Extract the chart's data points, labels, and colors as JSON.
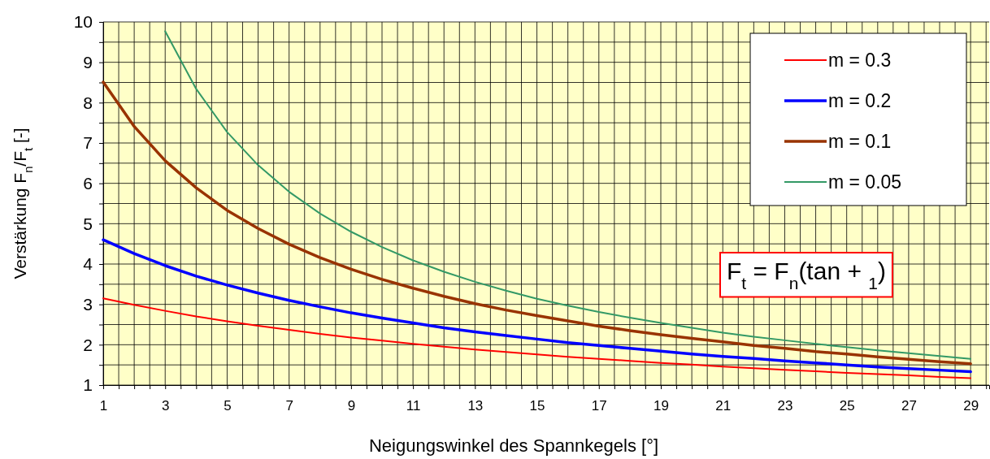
{
  "chart_data": {
    "type": "line",
    "xlabel": "Neigungswinkel des Spannkegels [°]",
    "ylabel": "Verstärkung F$_{n}$/F$_{t}$ [-]",
    "x": [
      1,
      2,
      3,
      4,
      5,
      6,
      7,
      8,
      9,
      10,
      11,
      12,
      13,
      14,
      15,
      16,
      17,
      18,
      19,
      20,
      21,
      22,
      23,
      24,
      25,
      26,
      27,
      28,
      29
    ],
    "series": [
      {
        "name": "m = 0.3",
        "color": "#ff0000",
        "values": [
          3.15,
          2.99,
          2.84,
          2.7,
          2.58,
          2.47,
          2.37,
          2.27,
          2.18,
          2.1,
          2.02,
          1.95,
          1.88,
          1.82,
          1.76,
          1.7,
          1.65,
          1.6,
          1.55,
          1.51,
          1.46,
          1.42,
          1.38,
          1.34,
          1.3,
          1.27,
          1.24,
          1.2,
          1.17
        ]
      },
      {
        "name": "m = 0.2",
        "color": "#0000ff",
        "values": [
          4.6,
          4.26,
          3.96,
          3.7,
          3.48,
          3.28,
          3.1,
          2.94,
          2.79,
          2.66,
          2.54,
          2.42,
          2.32,
          2.23,
          2.14,
          2.05,
          1.98,
          1.91,
          1.84,
          1.77,
          1.71,
          1.66,
          1.6,
          1.55,
          1.5,
          1.45,
          1.41,
          1.37,
          1.33
        ]
      },
      {
        "name": "m = 0.1",
        "color": "#993300",
        "values": [
          8.51,
          7.41,
          6.56,
          5.89,
          5.33,
          4.88,
          4.49,
          4.16,
          3.87,
          3.62,
          3.4,
          3.2,
          3.02,
          2.86,
          2.72,
          2.59,
          2.46,
          2.35,
          2.25,
          2.16,
          2.07,
          1.98,
          1.91,
          1.83,
          1.77,
          1.7,
          1.64,
          1.58,
          1.53
        ]
      },
      {
        "name": "m = 0.05",
        "color": "#339966",
        "values": [
          null,
          null,
          9.77,
          8.34,
          7.27,
          6.45,
          5.79,
          5.25,
          4.8,
          4.42,
          4.09,
          3.81,
          3.56,
          3.34,
          3.14,
          2.97,
          2.81,
          2.67,
          2.54,
          2.42,
          2.3,
          2.2,
          2.11,
          2.02,
          1.94,
          1.86,
          1.79,
          1.72,
          1.65
        ]
      }
    ],
    "xlim": [
      1,
      29.6
    ],
    "xticks": [
      1,
      {
        "value": 1.5,
        "label": null
      },
      {
        "value": 2,
        "label": null
      },
      {
        "value": 2.5,
        "label": null
      },
      3,
      {
        "value": 3.5,
        "label": null
      },
      {
        "value": 4,
        "label": null
      },
      {
        "value": 4.5,
        "label": null
      },
      5,
      {
        "value": 5.5,
        "label": null
      },
      {
        "value": 6,
        "label": null
      },
      {
        "value": 6.5,
        "label": null
      },
      7,
      {
        "value": 7.5,
        "label": null
      },
      {
        "value": 8,
        "label": null
      },
      {
        "value": 8.5,
        "label": null
      },
      9,
      {
        "value": 9.5,
        "label": null
      },
      {
        "value": 10,
        "label": null
      },
      {
        "value": 10.5,
        "label": null
      },
      11,
      {
        "value": 11.5,
        "label": null
      },
      {
        "value": 12,
        "label": null
      },
      {
        "value": 12.5,
        "label": null
      },
      13,
      {
        "value": 13.5,
        "label": null
      },
      {
        "value": 14,
        "label": null
      },
      {
        "value": 14.5,
        "label": null
      },
      15,
      {
        "value": 15.5,
        "label": null
      },
      {
        "value": 16,
        "label": null
      },
      {
        "value": 16.5,
        "label": null
      },
      17,
      {
        "value": 17.5,
        "label": null
      },
      {
        "value": 18,
        "label": null
      },
      {
        "value": 18.5,
        "label": null
      },
      19,
      {
        "value": 19.5,
        "label": null
      },
      {
        "value": 20,
        "label": null
      },
      {
        "value": 20.5,
        "label": null
      },
      21,
      {
        "value": 21.5,
        "label": null
      },
      {
        "value": 22,
        "label": null
      },
      {
        "value": 22.5,
        "label": null
      },
      23,
      {
        "value": 23.5,
        "label": null
      },
      {
        "value": 24,
        "label": null
      },
      {
        "value": 24.5,
        "label": null
      },
      25,
      {
        "value": 25.5,
        "label": null
      },
      {
        "value": 26,
        "label": null
      },
      {
        "value": 26.5,
        "label": null
      },
      27,
      {
        "value": 27.5,
        "label": null
      },
      {
        "value": 28,
        "label": null
      },
      {
        "value": 28.5,
        "label": null
      },
      29,
      {
        "value": 29.5,
        "label": null
      }
    ],
    "ylim": [
      1,
      10
    ],
    "yticks": [
      1,
      {
        "value": 1.5,
        "label": null
      },
      2,
      {
        "value": 2.5,
        "label": null
      },
      3,
      {
        "value": 3.5,
        "label": null
      },
      4,
      {
        "value": 4.5,
        "label": null
      },
      5,
      {
        "value": 5.5,
        "label": null
      },
      6,
      {
        "value": 6.5,
        "label": null
      },
      7,
      {
        "value": 7.5,
        "label": null
      },
      8,
      {
        "value": 8.5,
        "label": null
      },
      9,
      {
        "value": 9.5,
        "label": null
      },
      10
    ],
    "grid": true,
    "legend": "top right",
    "marker": "none",
    "line_style": "solid",
    "annotations": [
      "F$_{t}$ = F$_{n}$(tan  + $_{1}$)"
    ]
  }
}
